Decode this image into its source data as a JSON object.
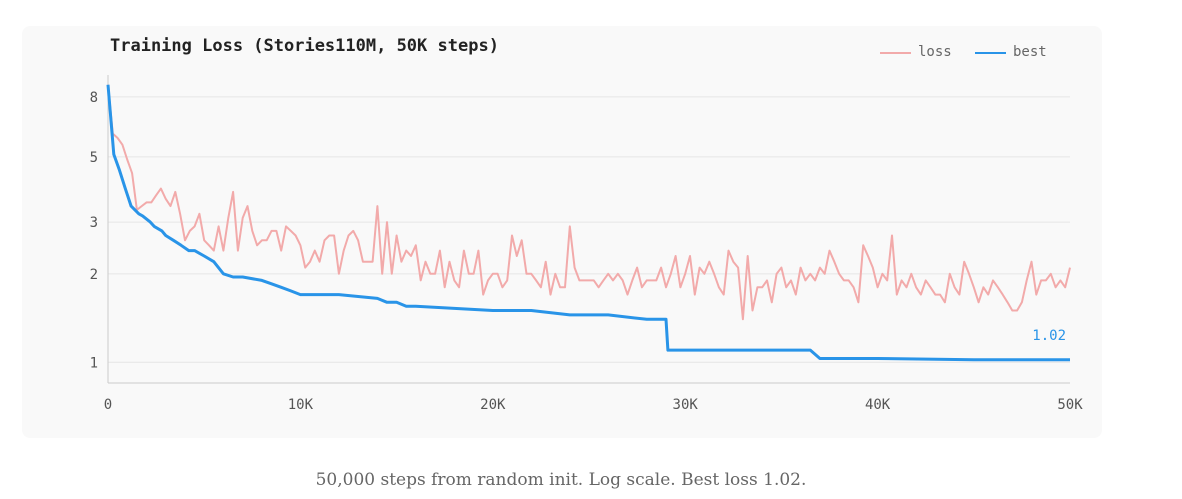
{
  "caption": "50,000 steps from random init. Log scale. Best loss 1.02.",
  "chart_data": {
    "type": "line",
    "title": "Training Loss (Stories110M, 50K steps)",
    "xlabel": "",
    "ylabel": "",
    "y_scale": "log",
    "xlim": [
      0,
      50000
    ],
    "ylim": [
      0.85,
      9.5
    ],
    "x_ticks": [
      0,
      10000,
      20000,
      30000,
      40000,
      50000
    ],
    "x_tick_labels": [
      "0",
      "10K",
      "20K",
      "30K",
      "40K",
      "50K"
    ],
    "y_ticks": [
      1,
      2,
      3,
      5,
      8
    ],
    "y_tick_labels": [
      "1",
      "2",
      "3",
      "5",
      "8"
    ],
    "grid": "horizontal",
    "legend": "top-right",
    "end_annotation": "1.02",
    "series": [
      {
        "name": "loss",
        "color": "#f2aaaa",
        "points": [
          [
            0,
            8.8
          ],
          [
            250,
            6.0
          ],
          [
            500,
            5.8
          ],
          [
            750,
            5.5
          ],
          [
            1000,
            4.9
          ],
          [
            1250,
            4.4
          ],
          [
            1500,
            3.3
          ],
          [
            1750,
            3.4
          ],
          [
            2000,
            3.5
          ],
          [
            2250,
            3.5
          ],
          [
            2500,
            3.7
          ],
          [
            2750,
            3.9
          ],
          [
            3000,
            3.6
          ],
          [
            3250,
            3.4
          ],
          [
            3500,
            3.8
          ],
          [
            3750,
            3.2
          ],
          [
            4000,
            2.6
          ],
          [
            4250,
            2.8
          ],
          [
            4500,
            2.9
          ],
          [
            4750,
            3.2
          ],
          [
            5000,
            2.6
          ],
          [
            5250,
            2.5
          ],
          [
            5500,
            2.4
          ],
          [
            5750,
            2.9
          ],
          [
            6000,
            2.4
          ],
          [
            6250,
            3.1
          ],
          [
            6500,
            3.8
          ],
          [
            6750,
            2.4
          ],
          [
            7000,
            3.1
          ],
          [
            7250,
            3.4
          ],
          [
            7500,
            2.8
          ],
          [
            7750,
            2.5
          ],
          [
            8000,
            2.6
          ],
          [
            8250,
            2.6
          ],
          [
            8500,
            2.8
          ],
          [
            8750,
            2.8
          ],
          [
            9000,
            2.4
          ],
          [
            9250,
            2.9
          ],
          [
            9500,
            2.8
          ],
          [
            9750,
            2.7
          ],
          [
            10000,
            2.5
          ],
          [
            10250,
            2.1
          ],
          [
            10500,
            2.2
          ],
          [
            10750,
            2.4
          ],
          [
            11000,
            2.2
          ],
          [
            11250,
            2.6
          ],
          [
            11500,
            2.7
          ],
          [
            11750,
            2.7
          ],
          [
            12000,
            2.0
          ],
          [
            12250,
            2.4
          ],
          [
            12500,
            2.7
          ],
          [
            12750,
            2.8
          ],
          [
            13000,
            2.6
          ],
          [
            13250,
            2.2
          ],
          [
            13500,
            2.2
          ],
          [
            13750,
            2.2
          ],
          [
            14000,
            3.4
          ],
          [
            14250,
            2.0
          ],
          [
            14500,
            3.0
          ],
          [
            14750,
            2.0
          ],
          [
            15000,
            2.7
          ],
          [
            15250,
            2.2
          ],
          [
            15500,
            2.4
          ],
          [
            15750,
            2.3
          ],
          [
            16000,
            2.5
          ],
          [
            16250,
            1.9
          ],
          [
            16500,
            2.2
          ],
          [
            16750,
            2.0
          ],
          [
            17000,
            2.0
          ],
          [
            17250,
            2.4
          ],
          [
            17500,
            1.8
          ],
          [
            17750,
            2.2
          ],
          [
            18000,
            1.9
          ],
          [
            18250,
            1.8
          ],
          [
            18500,
            2.4
          ],
          [
            18750,
            2.0
          ],
          [
            19000,
            2.0
          ],
          [
            19250,
            2.4
          ],
          [
            19500,
            1.7
          ],
          [
            19750,
            1.9
          ],
          [
            20000,
            2.0
          ],
          [
            20250,
            2.0
          ],
          [
            20500,
            1.8
          ],
          [
            20750,
            1.9
          ],
          [
            21000,
            2.7
          ],
          [
            21250,
            2.3
          ],
          [
            21500,
            2.6
          ],
          [
            21750,
            2.0
          ],
          [
            22000,
            2.0
          ],
          [
            22250,
            1.9
          ],
          [
            22500,
            1.8
          ],
          [
            22750,
            2.2
          ],
          [
            23000,
            1.7
          ],
          [
            23250,
            2.0
          ],
          [
            23500,
            1.8
          ],
          [
            23750,
            1.8
          ],
          [
            24000,
            2.9
          ],
          [
            24250,
            2.1
          ],
          [
            24500,
            1.9
          ],
          [
            24750,
            1.9
          ],
          [
            25000,
            1.9
          ],
          [
            25250,
            1.9
          ],
          [
            25500,
            1.8
          ],
          [
            25750,
            1.9
          ],
          [
            26000,
            2.0
          ],
          [
            26250,
            1.9
          ],
          [
            26500,
            2.0
          ],
          [
            26750,
            1.9
          ],
          [
            27000,
            1.7
          ],
          [
            27250,
            1.9
          ],
          [
            27500,
            2.1
          ],
          [
            27750,
            1.8
          ],
          [
            28000,
            1.9
          ],
          [
            28250,
            1.9
          ],
          [
            28500,
            1.9
          ],
          [
            28750,
            2.1
          ],
          [
            29000,
            1.8
          ],
          [
            29250,
            2.0
          ],
          [
            29500,
            2.3
          ],
          [
            29750,
            1.8
          ],
          [
            30000,
            2.0
          ],
          [
            30250,
            2.3
          ],
          [
            30500,
            1.7
          ],
          [
            30750,
            2.1
          ],
          [
            31000,
            2.0
          ],
          [
            31250,
            2.2
          ],
          [
            31500,
            2.0
          ],
          [
            31750,
            1.8
          ],
          [
            32000,
            1.7
          ],
          [
            32250,
            2.4
          ],
          [
            32500,
            2.2
          ],
          [
            32750,
            2.1
          ],
          [
            33000,
            1.4
          ],
          [
            33250,
            2.3
          ],
          [
            33500,
            1.5
          ],
          [
            33750,
            1.8
          ],
          [
            34000,
            1.8
          ],
          [
            34250,
            1.9
          ],
          [
            34500,
            1.6
          ],
          [
            34750,
            2.0
          ],
          [
            35000,
            2.1
          ],
          [
            35250,
            1.8
          ],
          [
            35500,
            1.9
          ],
          [
            35750,
            1.7
          ],
          [
            36000,
            2.1
          ],
          [
            36250,
            1.9
          ],
          [
            36500,
            2.0
          ],
          [
            36750,
            1.9
          ],
          [
            37000,
            2.1
          ],
          [
            37250,
            2.0
          ],
          [
            37500,
            2.4
          ],
          [
            37750,
            2.2
          ],
          [
            38000,
            2.0
          ],
          [
            38250,
            1.9
          ],
          [
            38500,
            1.9
          ],
          [
            38750,
            1.8
          ],
          [
            39000,
            1.6
          ],
          [
            39250,
            2.5
          ],
          [
            39500,
            2.3
          ],
          [
            39750,
            2.1
          ],
          [
            40000,
            1.8
          ],
          [
            40250,
            2.0
          ],
          [
            40500,
            1.9
          ],
          [
            40750,
            2.7
          ],
          [
            41000,
            1.7
          ],
          [
            41250,
            1.9
          ],
          [
            41500,
            1.8
          ],
          [
            41750,
            2.0
          ],
          [
            42000,
            1.8
          ],
          [
            42250,
            1.7
          ],
          [
            42500,
            1.9
          ],
          [
            42750,
            1.8
          ],
          [
            43000,
            1.7
          ],
          [
            43250,
            1.7
          ],
          [
            43500,
            1.6
          ],
          [
            43750,
            2.0
          ],
          [
            44000,
            1.8
          ],
          [
            44250,
            1.7
          ],
          [
            44500,
            2.2
          ],
          [
            44750,
            2.0
          ],
          [
            45000,
            1.8
          ],
          [
            45250,
            1.6
          ],
          [
            45500,
            1.8
          ],
          [
            45750,
            1.7
          ],
          [
            46000,
            1.9
          ],
          [
            46250,
            1.8
          ],
          [
            46500,
            1.7
          ],
          [
            46750,
            1.6
          ],
          [
            47000,
            1.5
          ],
          [
            47250,
            1.5
          ],
          [
            47500,
            1.6
          ],
          [
            47750,
            1.9
          ],
          [
            48000,
            2.2
          ],
          [
            48250,
            1.7
          ],
          [
            48500,
            1.9
          ],
          [
            48750,
            1.9
          ],
          [
            49000,
            2.0
          ],
          [
            49250,
            1.8
          ],
          [
            49500,
            1.9
          ],
          [
            49750,
            1.8
          ],
          [
            50000,
            2.1
          ]
        ]
      },
      {
        "name": "best",
        "color": "#2994e8",
        "points": [
          [
            0,
            8.8
          ],
          [
            300,
            5.1
          ],
          [
            600,
            4.5
          ],
          [
            900,
            3.9
          ],
          [
            1200,
            3.4
          ],
          [
            1600,
            3.2
          ],
          [
            1800,
            3.15
          ],
          [
            2200,
            3.0
          ],
          [
            2400,
            2.9
          ],
          [
            2800,
            2.8
          ],
          [
            3000,
            2.7
          ],
          [
            3400,
            2.6
          ],
          [
            3800,
            2.5
          ],
          [
            4200,
            2.4
          ],
          [
            4500,
            2.4
          ],
          [
            5000,
            2.3
          ],
          [
            5500,
            2.2
          ],
          [
            6000,
            2.0
          ],
          [
            6500,
            1.95
          ],
          [
            7000,
            1.95
          ],
          [
            8000,
            1.9
          ],
          [
            8500,
            1.85
          ],
          [
            9000,
            1.8
          ],
          [
            9500,
            1.75
          ],
          [
            10000,
            1.7
          ],
          [
            12000,
            1.7
          ],
          [
            14000,
            1.65
          ],
          [
            14500,
            1.6
          ],
          [
            15000,
            1.6
          ],
          [
            15500,
            1.55
          ],
          [
            16000,
            1.55
          ],
          [
            20000,
            1.5
          ],
          [
            22000,
            1.5
          ],
          [
            24000,
            1.45
          ],
          [
            26000,
            1.45
          ],
          [
            28000,
            1.4
          ],
          [
            29000,
            1.4
          ],
          [
            29100,
            1.1
          ],
          [
            33000,
            1.1
          ],
          [
            36500,
            1.1
          ],
          [
            37000,
            1.03
          ],
          [
            40000,
            1.03
          ],
          [
            45000,
            1.02
          ],
          [
            50000,
            1.02
          ]
        ]
      }
    ]
  }
}
